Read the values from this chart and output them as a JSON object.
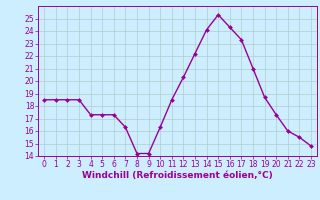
{
  "x": [
    0,
    1,
    2,
    3,
    4,
    5,
    6,
    7,
    8,
    9,
    10,
    11,
    12,
    13,
    14,
    15,
    16,
    17,
    18,
    19,
    20,
    21,
    22,
    23
  ],
  "y": [
    18.5,
    18.5,
    18.5,
    18.5,
    17.3,
    17.3,
    17.3,
    16.3,
    14.2,
    14.2,
    16.3,
    18.5,
    20.3,
    22.2,
    24.1,
    25.3,
    24.3,
    23.3,
    21.0,
    18.7,
    17.3,
    16.0,
    15.5,
    14.8
  ],
  "line_color": "#990099",
  "marker": "D",
  "marker_size": 2.0,
  "bg_color": "#cceeff",
  "grid_color": "#b0cccc",
  "xlabel": "Windchill (Refroidissement éolien,°C)",
  "xlabel_color": "#990099",
  "ylim": [
    14,
    26
  ],
  "xlim": [
    -0.5,
    23.5
  ],
  "yticks": [
    14,
    15,
    16,
    17,
    18,
    19,
    20,
    21,
    22,
    23,
    24,
    25
  ],
  "xticks": [
    0,
    1,
    2,
    3,
    4,
    5,
    6,
    7,
    8,
    9,
    10,
    11,
    12,
    13,
    14,
    15,
    16,
    17,
    18,
    19,
    20,
    21,
    22,
    23
  ],
  "tick_color": "#990099",
  "tick_label_color": "#990099",
  "tick_fontsize": 5.5,
  "xlabel_fontsize": 6.5,
  "line_width": 1.0,
  "border_color": "#990099"
}
